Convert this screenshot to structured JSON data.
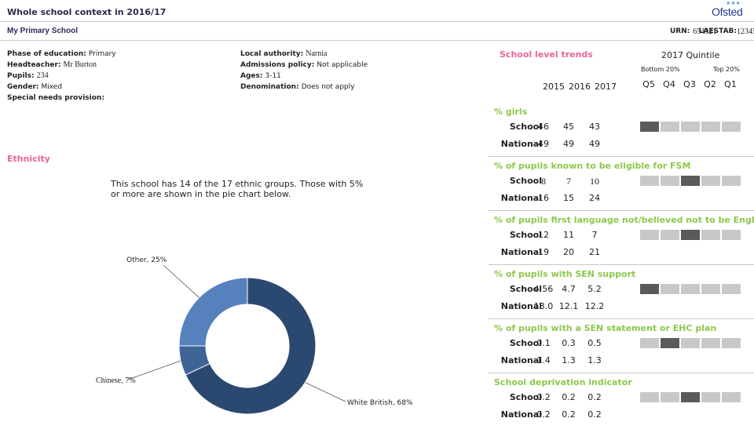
{
  "header": {
    "title": "Whole school context in 2016/17",
    "logo_text": "Ofsted",
    "logo_stars": "★★★"
  },
  "subheader": {
    "school_name": "My Primary School",
    "urn_label": "URN:",
    "urn_value": "654321",
    "laestab_label": "LAESTAB:",
    "laestab_value": "1234567"
  },
  "info_left": [
    {
      "label": "Phase of education:",
      "value": "Primary"
    },
    {
      "label": "Headteacher:",
      "value": "Mr Burton"
    },
    {
      "label": "Pupils:",
      "value": "234"
    },
    {
      "label": "Gender:",
      "value": "Mixed"
    },
    {
      "label": "Special needs provision:",
      "value": ""
    }
  ],
  "info_right": [
    {
      "label": "Local authority:",
      "value": "Narnia"
    },
    {
      "label": "Admissions policy:",
      "value": "Not applicable"
    },
    {
      "label": "Ages:",
      "value": "3-11"
    },
    {
      "label": "Denomination:",
      "value": "Does not apply"
    }
  ],
  "ethnicity": {
    "title": "Ethnicity",
    "text": "This school has 14 of the 17 ethnic groups. Those with 5% or more are shown in the pie chart below."
  },
  "chart_data": {
    "type": "pie",
    "donut": true,
    "slices": [
      {
        "label": "White British, 68%",
        "name": "White British",
        "value": 68,
        "color": "#2b4870"
      },
      {
        "label": "Chinese, 7%",
        "name": "Chinese",
        "value": 7,
        "color": "#3f6597"
      },
      {
        "label": "Other, 25%",
        "name": "Other",
        "value": 25,
        "color": "#5681bd"
      }
    ]
  },
  "trends": {
    "title": "School level trends",
    "quintile_title": "2017 Quintile",
    "bottom_label": "Bottom 20%",
    "top_label": "Top 20%",
    "quintile_labels": [
      "Q5",
      "Q4",
      "Q3",
      "Q2",
      "Q1"
    ],
    "years": [
      "2015",
      "2016",
      "2017"
    ],
    "indicators": [
      {
        "title": "% girls",
        "school": [
          "46",
          "45",
          "43"
        ],
        "national": [
          "49",
          "49",
          "49"
        ],
        "quintile": "Q5",
        "serif": [
          false,
          false,
          false
        ]
      },
      {
        "title": "% of pupils known to be eligible for FSM",
        "school": [
          "8",
          "7",
          "10"
        ],
        "national": [
          "16",
          "15",
          "24"
        ],
        "quintile": "Q3",
        "serif": [
          true,
          true,
          true
        ]
      },
      {
        "title": "% of pupils first language not/believed not to be English",
        "school": [
          "12",
          "11",
          "7"
        ],
        "national": [
          "19",
          "20",
          "21"
        ],
        "quintile": "Q3",
        "serif": [
          false,
          false,
          false
        ]
      },
      {
        "title": "% of pupils with SEN support",
        "school": [
          "4.56",
          "4.7",
          "5.2"
        ],
        "national": [
          "13.0",
          "12.1",
          "12.2"
        ],
        "quintile": "Q5",
        "serif": [
          false,
          false,
          false
        ]
      },
      {
        "title": "% of pupils with a SEN statement or EHC plan",
        "school": [
          "0.1",
          "0.3",
          "0.5"
        ],
        "national": [
          "1.4",
          "1.3",
          "1.3"
        ],
        "quintile": "Q4",
        "serif": [
          false,
          false,
          false
        ]
      },
      {
        "title": "School deprivation indicator",
        "school": [
          "0.2",
          "0.2",
          "0.2"
        ],
        "national": [
          "0.2",
          "0.2",
          "0.2"
        ],
        "quintile": "Q3",
        "serif": [
          false,
          false,
          false
        ]
      }
    ],
    "school_label": "School",
    "national_label": "National"
  }
}
